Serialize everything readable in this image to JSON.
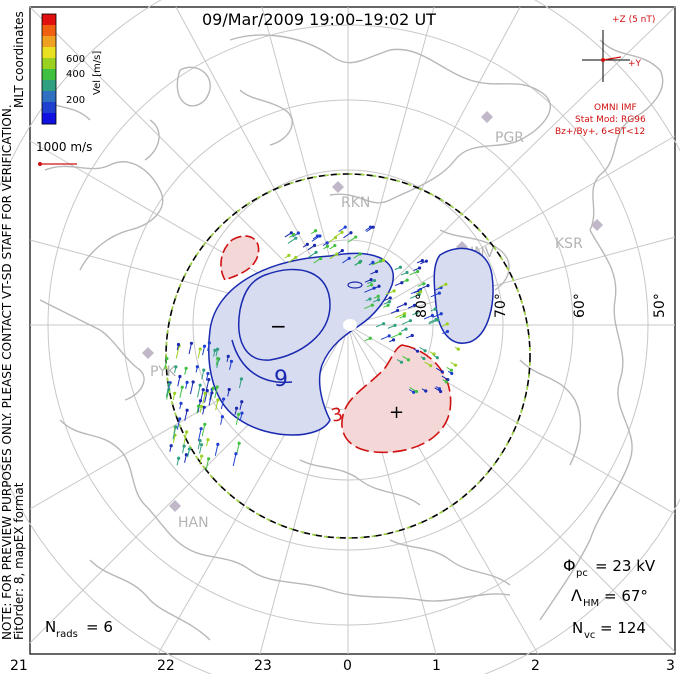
{
  "title": "09/Mar/2009 19:00–19:02 UT",
  "side_note": {
    "line1": "NOTE: FOR PREVIEW PURPOSES ONLY. PLEASE CONTACT VT-SD STAFF FOR VERIFICATION.",
    "line2": "FitOrder: 8,  mapEX format",
    "coords": "MLT coordinates"
  },
  "colorbar": {
    "axis_label": "Vel [m/s]",
    "ticks": [
      "600",
      "400",
      "200"
    ],
    "colors": [
      "#e01010",
      "#f06010",
      "#f0a020",
      "#e8e020",
      "#9ad020",
      "#40c040",
      "#30a080",
      "#3070c0",
      "#2040d0",
      "#1010e0"
    ]
  },
  "reference_vector": {
    "label": "1000 m/s",
    "color": "#d01010"
  },
  "imf": {
    "z_label": "+Z (5 nT)",
    "y_label": "+Y",
    "source": "OMNI IMF",
    "stat_model": "Stat Mod: RG96",
    "condition": "Bz+/By+, 6<BT<12",
    "color": "#d01010"
  },
  "latitude_labels": [
    "80°",
    "70°",
    "60°",
    "50°"
  ],
  "mlt_labels": [
    "21",
    "22",
    "23",
    "0",
    "1",
    "2",
    "3"
  ],
  "stations": [
    "PGR",
    "RKN",
    "INV",
    "KSR",
    "PYK",
    "HAN"
  ],
  "contour_labels": {
    "negative_value": "9",
    "positive_value": "3",
    "neg_symbol": "−",
    "pos_symbol": "+"
  },
  "stats": {
    "phi_pc_label": "Φ",
    "phi_pc_sub": "pc",
    "phi_pc_value": "= 23 kV",
    "lambda_hm_label": "Λ",
    "lambda_hm_sub": "HM",
    "lambda_hm_value": "= 67°",
    "nvc_label": "N",
    "nvc_sub": "vc",
    "nvc_value": "= 124",
    "nrads_label": "N",
    "nrads_sub": "rads",
    "nrads_value": "= 6"
  },
  "colors": {
    "negative_fill": "#d8dcf0",
    "negative_line": "#1a2ab0",
    "positive_fill": "#f4d8d8",
    "positive_line": "#d01010",
    "hm_boundary": "#000000",
    "hm_dash": "#9ad040"
  }
}
